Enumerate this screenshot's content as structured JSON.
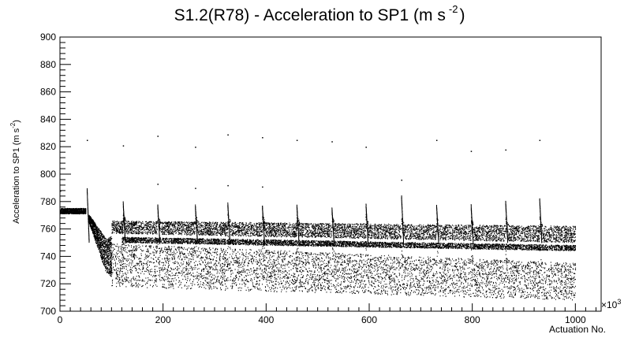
{
  "chart_data": {
    "type": "scatter",
    "title_prefix": "S1.2(R78) - Acceleration to SP1 (m s",
    "title_exp": "-2",
    "title_suffix": ")",
    "xlabel": "Actuation No.",
    "ylabel": "Acceleration to SP1 (m s",
    "ylabel_exp": "-2",
    "ylabel_suffix": ")",
    "x_multiplier_label": "×10",
    "x_multiplier_exp": "3",
    "xlim": [
      0,
      1050
    ],
    "ylim": [
      700,
      900
    ],
    "x_ticks": [
      0,
      200,
      400,
      600,
      800,
      1000
    ],
    "y_ticks": [
      700,
      720,
      740,
      760,
      780,
      800,
      820,
      840,
      860,
      880,
      900
    ],
    "grid": false,
    "marker_color": "#000000",
    "bands": [
      {
        "name": "initial",
        "x": [
          0,
          50
        ],
        "y_low": 771,
        "y_high": 775
      },
      {
        "name": "upper",
        "x": [
          60,
          1000
        ],
        "y_high_start": 766,
        "y_high_end": 762,
        "y_low_start": 757,
        "y_low_end": 750
      },
      {
        "name": "middle",
        "x": [
          120,
          1000
        ],
        "y_start": 752,
        "y_end": 746
      },
      {
        "name": "lower",
        "x": [
          60,
          1000
        ],
        "y_high_start": 750,
        "y_high_end": 735,
        "y_low_start": 718,
        "y_low_end": 708
      }
    ],
    "spikes": [
      {
        "x": 52,
        "y_peak": 790
      },
      {
        "x": 122,
        "y_peak": 780
      },
      {
        "x": 189,
        "y_peak": 778
      },
      {
        "x": 262,
        "y_peak": 778
      },
      {
        "x": 325,
        "y_peak": 779
      },
      {
        "x": 392,
        "y_peak": 778
      },
      {
        "x": 459,
        "y_peak": 778
      },
      {
        "x": 527,
        "y_peak": 776
      },
      {
        "x": 593,
        "y_peak": 779
      },
      {
        "x": 662,
        "y_peak": 785
      },
      {
        "x": 730,
        "y_peak": 778
      },
      {
        "x": 797,
        "y_peak": 778
      },
      {
        "x": 864,
        "y_peak": 781
      },
      {
        "x": 930,
        "y_peak": 783
      }
    ],
    "outliers": [
      {
        "x": 52,
        "y": 825
      },
      {
        "x": 122,
        "y": 821
      },
      {
        "x": 189,
        "y": 828
      },
      {
        "x": 189,
        "y": 793
      },
      {
        "x": 262,
        "y": 820
      },
      {
        "x": 262,
        "y": 790
      },
      {
        "x": 325,
        "y": 829
      },
      {
        "x": 325,
        "y": 792
      },
      {
        "x": 392,
        "y": 827
      },
      {
        "x": 392,
        "y": 791
      },
      {
        "x": 459,
        "y": 825
      },
      {
        "x": 527,
        "y": 824
      },
      {
        "x": 593,
        "y": 820
      },
      {
        "x": 662,
        "y": 796
      },
      {
        "x": 730,
        "y": 825
      },
      {
        "x": 797,
        "y": 817
      },
      {
        "x": 864,
        "y": 818
      },
      {
        "x": 930,
        "y": 825
      },
      {
        "x": 0,
        "y": 788
      }
    ]
  }
}
